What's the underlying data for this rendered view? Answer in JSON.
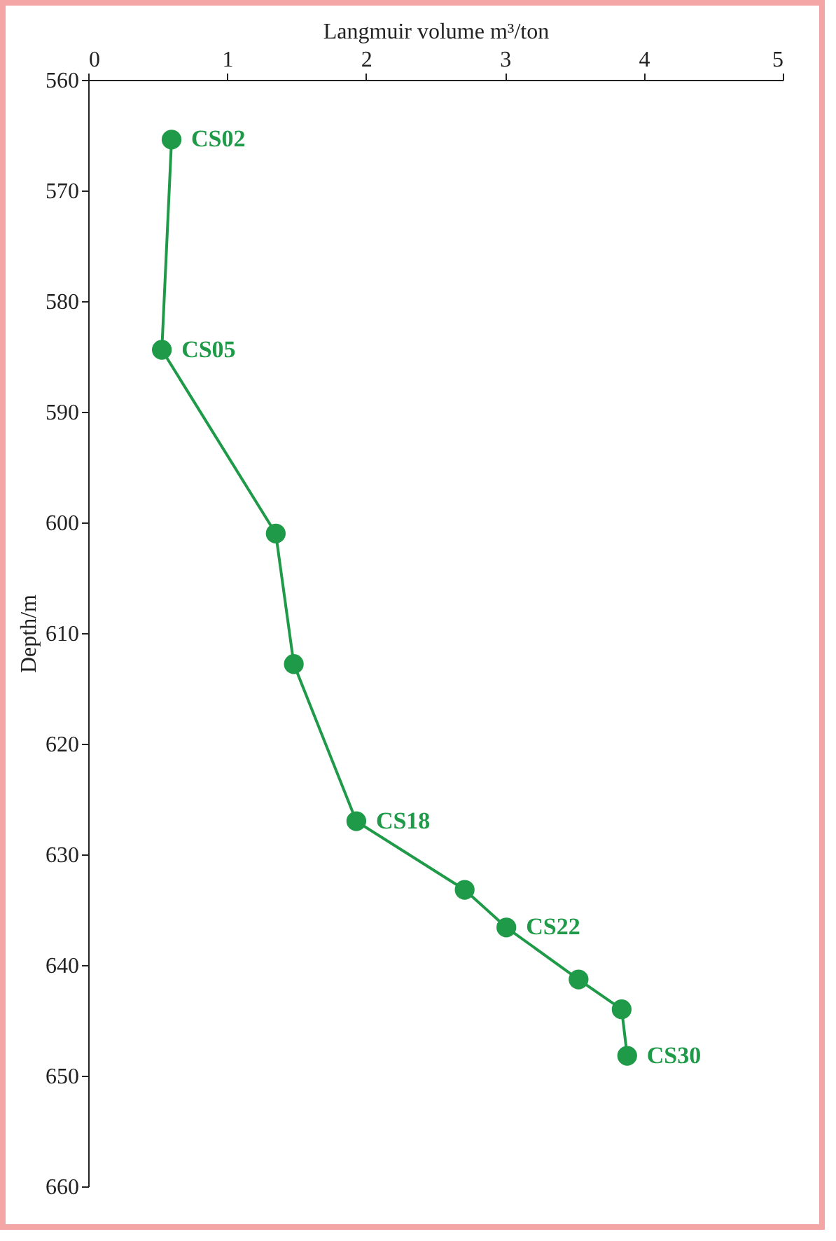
{
  "chart_data": {
    "type": "line",
    "xlabel": "Langmuir volume m³/ton",
    "ylabel": "Depth/m",
    "x": [
      0.6,
      0.53,
      1.35,
      1.48,
      1.93,
      2.71,
      3.01,
      3.53,
      3.84,
      3.88
    ],
    "series": [
      {
        "color": "#1e9a48",
        "values": [
          565.4,
          584.4,
          601.0,
          612.8,
          627.0,
          633.2,
          636.6,
          641.3,
          644.0,
          648.2
        ]
      }
    ],
    "xlim": [
      0,
      5
    ],
    "xticks": [
      0,
      1,
      2,
      3,
      4,
      5
    ],
    "ylim": [
      660,
      560
    ],
    "yticks": [
      560,
      570,
      580,
      590,
      600,
      610,
      620,
      630,
      640,
      650,
      660
    ],
    "marker": "circle",
    "line_style": "solid",
    "grid": false,
    "annotations": [
      {
        "text": "CS02",
        "x": 0.6,
        "y": 565.4
      },
      {
        "text": "CS05",
        "x": 0.53,
        "y": 584.4
      },
      {
        "text": "CS18",
        "x": 1.93,
        "y": 627.0
      },
      {
        "text": "CS22",
        "x": 3.01,
        "y": 636.6
      },
      {
        "text": "CS30",
        "x": 3.88,
        "y": 648.2
      }
    ]
  }
}
